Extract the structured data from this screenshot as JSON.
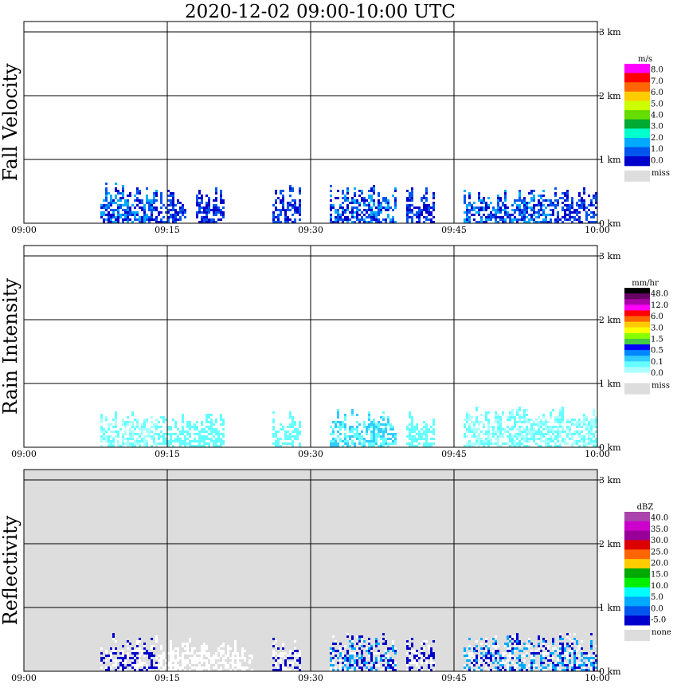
{
  "title": "2020-12-02   09:00-10:00 UTC",
  "x_ticks": [
    "09:00",
    "09:15",
    "09:30",
    "09:45",
    "10:00"
  ],
  "y_ticks": [
    "0 km",
    "1 km",
    "2 km",
    "3 km"
  ],
  "chart_data": [
    {
      "type": "heatmap",
      "title": "Fall Velocity",
      "ylabel": "Fall Velocity",
      "x_range": [
        "09:00",
        "10:00"
      ],
      "y_range_km": [
        0,
        3.5
      ],
      "background": "#ffffff",
      "grid": true,
      "colorbar": {
        "unit": "m/s",
        "labels": [
          "8.0",
          "7.0",
          "6.0",
          "5.0",
          "4.0",
          "3.0",
          "2.0",
          "1.0",
          "0.0"
        ],
        "colors": [
          "#ff00ff",
          "#ff0000",
          "#ff6600",
          "#ffcc00",
          "#ccff00",
          "#66dd00",
          "#00aa33",
          "#00ffcc",
          "#00aaff",
          "#0055ee",
          "#0000cc"
        ],
        "missing_label": "miss",
        "missing_color": "#dddddd"
      },
      "precip_clusters": [
        {
          "start": "09:08",
          "end": "09:14",
          "top_km": 0.65,
          "colors": [
            "#0000cc",
            "#0055ee",
            "#00aaff"
          ]
        },
        {
          "start": "09:14",
          "end": "09:17",
          "top_km": 0.6,
          "colors": [
            "#0000cc",
            "#0055ee"
          ]
        },
        {
          "start": "09:18",
          "end": "09:21",
          "top_km": 0.55,
          "colors": [
            "#0000cc",
            "#0055ee"
          ]
        },
        {
          "start": "09:26",
          "end": "09:29",
          "top_km": 0.6,
          "colors": [
            "#0000cc",
            "#0055ee"
          ]
        },
        {
          "start": "09:32",
          "end": "09:39",
          "top_km": 0.6,
          "colors": [
            "#0000cc",
            "#0055ee",
            "#00aaff"
          ]
        },
        {
          "start": "09:40",
          "end": "09:43",
          "top_km": 0.55,
          "colors": [
            "#0000cc",
            "#0055ee"
          ]
        },
        {
          "start": "09:46",
          "end": "09:55",
          "top_km": 0.55,
          "colors": [
            "#0000cc",
            "#0055ee",
            "#00aaff"
          ]
        },
        {
          "start": "09:55",
          "end": "10:00",
          "top_km": 0.6,
          "colors": [
            "#0000cc",
            "#0055ee"
          ]
        }
      ]
    },
    {
      "type": "heatmap",
      "title": "Rain Intensity",
      "ylabel": "Rain Intensity",
      "x_range": [
        "09:00",
        "10:00"
      ],
      "y_range_km": [
        0,
        3.5
      ],
      "background": "#ffffff",
      "grid": true,
      "colorbar": {
        "unit": "mm/hr",
        "labels": [
          "48.0",
          "12.0",
          "6.0",
          "3.0",
          "1.5",
          "0.5",
          "0.1",
          "0.0"
        ],
        "colors": [
          "#000000",
          "#660066",
          "#aa00aa",
          "#ff00ff",
          "#ff0000",
          "#ff6600",
          "#ffcc00",
          "#ffff00",
          "#88ff00",
          "#44cc44",
          "#0000ff",
          "#0088ff",
          "#33ccff",
          "#66ffff",
          "#aaffff",
          "#ffffff"
        ],
        "missing_label": "miss",
        "missing_color": "#dddddd"
      },
      "precip_clusters": [
        {
          "start": "09:08",
          "end": "09:14",
          "top_km": 0.6,
          "colors": [
            "#66ffff",
            "#aaffff"
          ]
        },
        {
          "start": "09:14",
          "end": "09:21",
          "top_km": 0.55,
          "colors": [
            "#66ffff"
          ]
        },
        {
          "start": "09:26",
          "end": "09:29",
          "top_km": 0.55,
          "colors": [
            "#66ffff"
          ]
        },
        {
          "start": "09:32",
          "end": "09:39",
          "top_km": 0.6,
          "colors": [
            "#66ffff",
            "#33ccff"
          ]
        },
        {
          "start": "09:40",
          "end": "09:43",
          "top_km": 0.55,
          "colors": [
            "#66ffff"
          ]
        },
        {
          "start": "09:46",
          "end": "10:00",
          "top_km": 0.65,
          "colors": [
            "#66ffff",
            "#aaffff"
          ]
        }
      ]
    },
    {
      "type": "heatmap",
      "title": "Reflectivity",
      "ylabel": "Reflectivity",
      "x_range": [
        "09:00",
        "10:00"
      ],
      "y_range_km": [
        0,
        3.5
      ],
      "background": "#dddddd",
      "grid": true,
      "colorbar": {
        "unit": "dBZ",
        "labels": [
          "40.0",
          "35.0",
          "30.0",
          "25.0",
          "20.0",
          "15.0",
          "10.0",
          "5.0",
          "0.0",
          "-5.0"
        ],
        "colors": [
          "#aa44aa",
          "#cc00cc",
          "#990099",
          "#dd0000",
          "#ff6600",
          "#ffcc00",
          "#00aa00",
          "#00ee00",
          "#00ffff",
          "#00aaff",
          "#0055ee",
          "#0000cc"
        ],
        "missing_label": "none",
        "missing_color": "#dddddd"
      },
      "precip_clusters": [
        {
          "start": "09:08",
          "end": "09:14",
          "top_km": 0.6,
          "colors": [
            "#ffffff",
            "#0000cc"
          ]
        },
        {
          "start": "09:14",
          "end": "09:24",
          "top_km": 0.5,
          "colors": [
            "#ffffff"
          ]
        },
        {
          "start": "09:26",
          "end": "09:29",
          "top_km": 0.55,
          "colors": [
            "#0000cc",
            "#ffffff"
          ]
        },
        {
          "start": "09:32",
          "end": "09:39",
          "top_km": 0.6,
          "colors": [
            "#0000cc",
            "#00aaff",
            "#ffffff"
          ]
        },
        {
          "start": "09:40",
          "end": "09:43",
          "top_km": 0.55,
          "colors": [
            "#0000cc",
            "#ffffff"
          ]
        },
        {
          "start": "09:46",
          "end": "10:00",
          "top_km": 0.6,
          "colors": [
            "#0000cc",
            "#00aaff",
            "#ffffff"
          ]
        }
      ]
    }
  ]
}
